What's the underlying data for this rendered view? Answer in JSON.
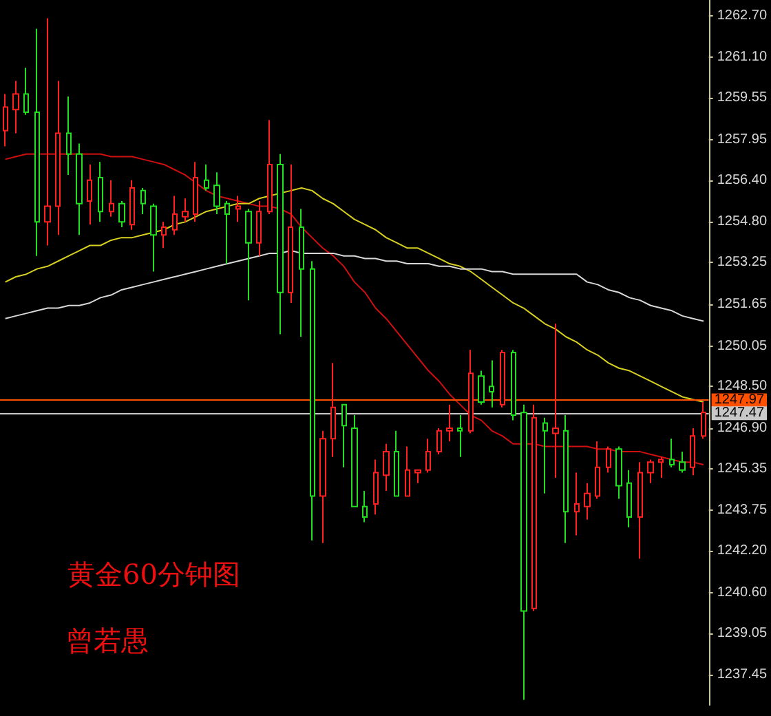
{
  "chart_data": {
    "type": "candlestick",
    "title": "黄金60分钟图",
    "annotations": [
      "曾若愚"
    ],
    "categories": [
      null,
      null,
      null,
      null,
      null,
      null,
      null,
      null,
      null,
      null,
      null,
      null,
      null,
      null,
      null,
      null,
      null,
      null,
      null,
      null,
      null,
      null,
      null,
      null,
      null,
      null,
      null,
      null,
      null,
      null,
      null,
      null,
      null,
      null,
      null,
      null,
      null,
      null,
      null,
      null,
      null,
      null,
      null,
      null,
      null,
      null,
      null,
      null,
      null,
      null,
      null,
      null,
      null,
      null,
      null,
      null,
      null,
      null,
      null,
      null,
      null,
      null,
      null,
      null,
      null,
      null,
      null
    ],
    "ohlc": [
      [
        1258.3,
        1259.7,
        1257.7,
        1259.2
      ],
      [
        1259.1,
        1260.2,
        1258.2,
        1259.7
      ],
      [
        1259.7,
        1260.7,
        1258.9,
        1259.0
      ],
      [
        1259.0,
        1262.2,
        1253.5,
        1254.8
      ],
      [
        1254.8,
        1262.6,
        1253.9,
        1255.4
      ],
      [
        1255.4,
        1260.2,
        1254.3,
        1258.2
      ],
      [
        1258.2,
        1259.6,
        1256.6,
        1257.4
      ],
      [
        1257.4,
        1257.8,
        1254.3,
        1255.5
      ],
      [
        1255.6,
        1257.0,
        1254.7,
        1256.4
      ],
      [
        1256.5,
        1257.1,
        1254.8,
        1255.2
      ],
      [
        1255.2,
        1256.4,
        1255.0,
        1255.5
      ],
      [
        1255.5,
        1255.6,
        1254.6,
        1254.8
      ],
      [
        1254.7,
        1256.4,
        1254.5,
        1256.1
      ],
      [
        1256.0,
        1256.1,
        1255.1,
        1255.5
      ],
      [
        1255.4,
        1255.5,
        1252.9,
        1254.3
      ],
      [
        1254.3,
        1254.8,
        1253.8,
        1254.6
      ],
      [
        1254.5,
        1255.8,
        1254.3,
        1255.1
      ],
      [
        1255.0,
        1255.7,
        1254.8,
        1255.2
      ],
      [
        1255.1,
        1257.1,
        1254.8,
        1256.5
      ],
      [
        1256.4,
        1257.0,
        1256.0,
        1256.1
      ],
      [
        1256.2,
        1256.7,
        1255.1,
        1255.4
      ],
      [
        1255.5,
        1255.6,
        1253.2,
        1255.1
      ],
      [
        1255.3,
        1255.8,
        1254.8,
        1255.4
      ],
      [
        1255.2,
        1255.3,
        1251.8,
        1254.0
      ],
      [
        1254.0,
        1255.6,
        1253.5,
        1255.2
      ],
      [
        1255.2,
        1258.7,
        1255.1,
        1257.0
      ],
      [
        1257.0,
        1257.4,
        1250.5,
        1252.1
      ],
      [
        1252.1,
        1257.0,
        1251.7,
        1254.6
      ],
      [
        1254.6,
        1255.3,
        1250.4,
        1253.0
      ],
      [
        1253.0,
        1253.3,
        1242.6,
        1244.3
      ],
      [
        1244.3,
        1246.8,
        1242.5,
        1246.5
      ],
      [
        1246.5,
        1249.4,
        1245.8,
        1247.7
      ],
      [
        1247.8,
        1247.8,
        1245.4,
        1247.0
      ],
      [
        1246.9,
        1247.4,
        1243.9,
        1243.9
      ],
      [
        1243.9,
        1244.5,
        1243.3,
        1243.5
      ],
      [
        1244.0,
        1245.7,
        1243.6,
        1245.2
      ],
      [
        1245.1,
        1246.3,
        1244.5,
        1246.0
      ],
      [
        1246.0,
        1246.8,
        1244.3,
        1244.3
      ],
      [
        1244.3,
        1246.2,
        1244.3,
        1245.3
      ],
      [
        1245.2,
        1245.3,
        1244.8,
        1245.3
      ],
      [
        1245.3,
        1246.5,
        1245.2,
        1246.0
      ],
      [
        1246.0,
        1246.9,
        1245.9,
        1246.8
      ],
      [
        1246.8,
        1247.8,
        1246.4,
        1246.9
      ],
      [
        1246.9,
        1247.4,
        1245.8,
        1246.8
      ],
      [
        1246.8,
        1249.9,
        1246.7,
        1249.0
      ],
      [
        1248.9,
        1249.1,
        1247.8,
        1247.9
      ],
      [
        1248.5,
        1249.5,
        1247.7,
        1248.3
      ],
      [
        1247.8,
        1249.9,
        1247.7,
        1249.8
      ],
      [
        1249.8,
        1249.9,
        1247.2,
        1247.4
      ],
      [
        1247.5,
        1247.8,
        1236.5,
        1239.9
      ],
      [
        1240.0,
        1247.8,
        1239.9,
        1247.3
      ],
      [
        1247.1,
        1247.3,
        1244.4,
        1246.8
      ],
      [
        1246.7,
        1250.9,
        1245.0,
        1246.9
      ],
      [
        1246.8,
        1247.4,
        1242.5,
        1243.7
      ],
      [
        1243.7,
        1245.2,
        1242.8,
        1244.0
      ],
      [
        1243.9,
        1244.8,
        1243.4,
        1244.4
      ],
      [
        1244.3,
        1246.4,
        1244.2,
        1245.4
      ],
      [
        1245.4,
        1246.2,
        1245.2,
        1246.1
      ],
      [
        1246.1,
        1246.2,
        1244.2,
        1244.7
      ],
      [
        1244.8,
        1245.3,
        1243.1,
        1243.5
      ],
      [
        1243.5,
        1245.6,
        1241.9,
        1245.2
      ],
      [
        1245.2,
        1245.7,
        1244.8,
        1245.6
      ],
      [
        1245.6,
        1245.8,
        1245.0,
        1245.7
      ],
      [
        1245.7,
        1246.5,
        1245.4,
        1245.5
      ],
      [
        1245.6,
        1246.0,
        1245.2,
        1245.3
      ],
      [
        1245.4,
        1246.9,
        1245.1,
        1246.6
      ],
      [
        1246.6,
        1247.9,
        1246.5,
        1247.5
      ]
    ],
    "series": [
      {
        "type": "line",
        "color": "#d01010",
        "values": [
          1257.2,
          1257.3,
          1257.4,
          1257.4,
          1257.4,
          1257.4,
          1257.4,
          1257.4,
          1257.4,
          1257.4,
          1257.3,
          1257.3,
          1257.3,
          1257.2,
          1257.1,
          1257.0,
          1256.8,
          1256.6,
          1256.3,
          1256.0,
          1255.8,
          1255.7,
          1255.6,
          1255.5,
          1255.4,
          1255.4,
          1255.3,
          1255.1,
          1254.6,
          1254.2,
          1253.8,
          1253.5,
          1253.1,
          1252.5,
          1252.1,
          1251.5,
          1251.1,
          1250.6,
          1250.1,
          1249.6,
          1249.1,
          1248.7,
          1248.2,
          1247.8,
          1247.4,
          1247.2,
          1246.8,
          1246.6,
          1246.3,
          1246.3,
          1246.3,
          1246.2,
          1246.2,
          1246.2,
          1246.2,
          1246.2,
          1246.1,
          1246.1,
          1246.0,
          1246.0,
          1246.0,
          1245.9,
          1245.8,
          1245.7,
          1245.6,
          1245.6,
          1245.5
        ]
      },
      {
        "type": "line",
        "color": "#d8d020",
        "values": [
          1252.5,
          1252.7,
          1252.8,
          1253.0,
          1253.1,
          1253.3,
          1253.5,
          1253.7,
          1253.9,
          1253.9,
          1254.1,
          1254.2,
          1254.2,
          1254.3,
          1254.4,
          1254.5,
          1254.7,
          1254.8,
          1255.0,
          1255.2,
          1255.3,
          1255.4,
          1255.5,
          1255.5,
          1255.7,
          1255.8,
          1255.9,
          1256.0,
          1256.1,
          1256.0,
          1255.7,
          1255.5,
          1255.2,
          1254.9,
          1254.7,
          1254.5,
          1254.2,
          1254.0,
          1253.8,
          1253.8,
          1253.6,
          1253.4,
          1253.2,
          1253.1,
          1252.9,
          1252.6,
          1252.3,
          1252.0,
          1251.7,
          1251.5,
          1251.2,
          1250.9,
          1250.7,
          1250.4,
          1250.2,
          1249.9,
          1249.7,
          1249.4,
          1249.2,
          1249.1,
          1248.9,
          1248.7,
          1248.5,
          1248.3,
          1248.1,
          1248.0,
          1247.9
        ]
      },
      {
        "type": "line",
        "color": "#d8d8d8",
        "values": [
          1251.1,
          1251.2,
          1251.3,
          1251.4,
          1251.5,
          1251.5,
          1251.6,
          1251.6,
          1251.7,
          1251.9,
          1252.0,
          1252.2,
          1252.3,
          1252.4,
          1252.5,
          1252.6,
          1252.7,
          1252.8,
          1252.9,
          1253.0,
          1253.1,
          1253.2,
          1253.3,
          1253.4,
          1253.5,
          1253.6,
          1253.6,
          1253.7,
          1253.6,
          1253.6,
          1253.6,
          1253.6,
          1253.5,
          1253.5,
          1253.4,
          1253.4,
          1253.3,
          1253.3,
          1253.2,
          1253.2,
          1253.2,
          1253.1,
          1253.1,
          1253.0,
          1253.0,
          1253.0,
          1252.9,
          1252.9,
          1252.8,
          1252.8,
          1252.8,
          1252.8,
          1252.8,
          1252.8,
          1252.8,
          1252.5,
          1252.4,
          1252.2,
          1252.1,
          1251.9,
          1251.8,
          1251.6,
          1251.5,
          1251.4,
          1251.2,
          1251.1,
          1251.0
        ]
      }
    ],
    "ref_lines": [
      {
        "axis": "y",
        "value": 1247.97,
        "label": "1247.97",
        "color": "#ff5000"
      },
      {
        "axis": "y",
        "value": 1247.47,
        "label": "1247.47",
        "color": "#c8c8c8"
      }
    ],
    "ylim": [
      1236.3,
      1263.3
    ],
    "yticks": [
      {
        "value": 1262.7,
        "label": "1262.70"
      },
      {
        "value": 1261.1,
        "label": "1261.10"
      },
      {
        "value": 1259.55,
        "label": "1259.55"
      },
      {
        "value": 1257.95,
        "label": "1257.95"
      },
      {
        "value": 1256.4,
        "label": "1256.40"
      },
      {
        "value": 1254.8,
        "label": "1254.80"
      },
      {
        "value": 1253.25,
        "label": "1253.25"
      },
      {
        "value": 1251.65,
        "label": "1251.65"
      },
      {
        "value": 1250.05,
        "label": "1250.05"
      },
      {
        "value": 1248.5,
        "label": "1248.50"
      },
      {
        "value": 1246.9,
        "label": "1246.90"
      },
      {
        "value": 1245.35,
        "label": "1245.35"
      },
      {
        "value": 1243.75,
        "label": "1243.75"
      },
      {
        "value": 1242.2,
        "label": "1242.20"
      },
      {
        "value": 1240.6,
        "label": "1240.60"
      },
      {
        "value": 1239.05,
        "label": "1239.05"
      },
      {
        "value": 1237.45,
        "label": "1237.45"
      }
    ],
    "marker": "none"
  }
}
